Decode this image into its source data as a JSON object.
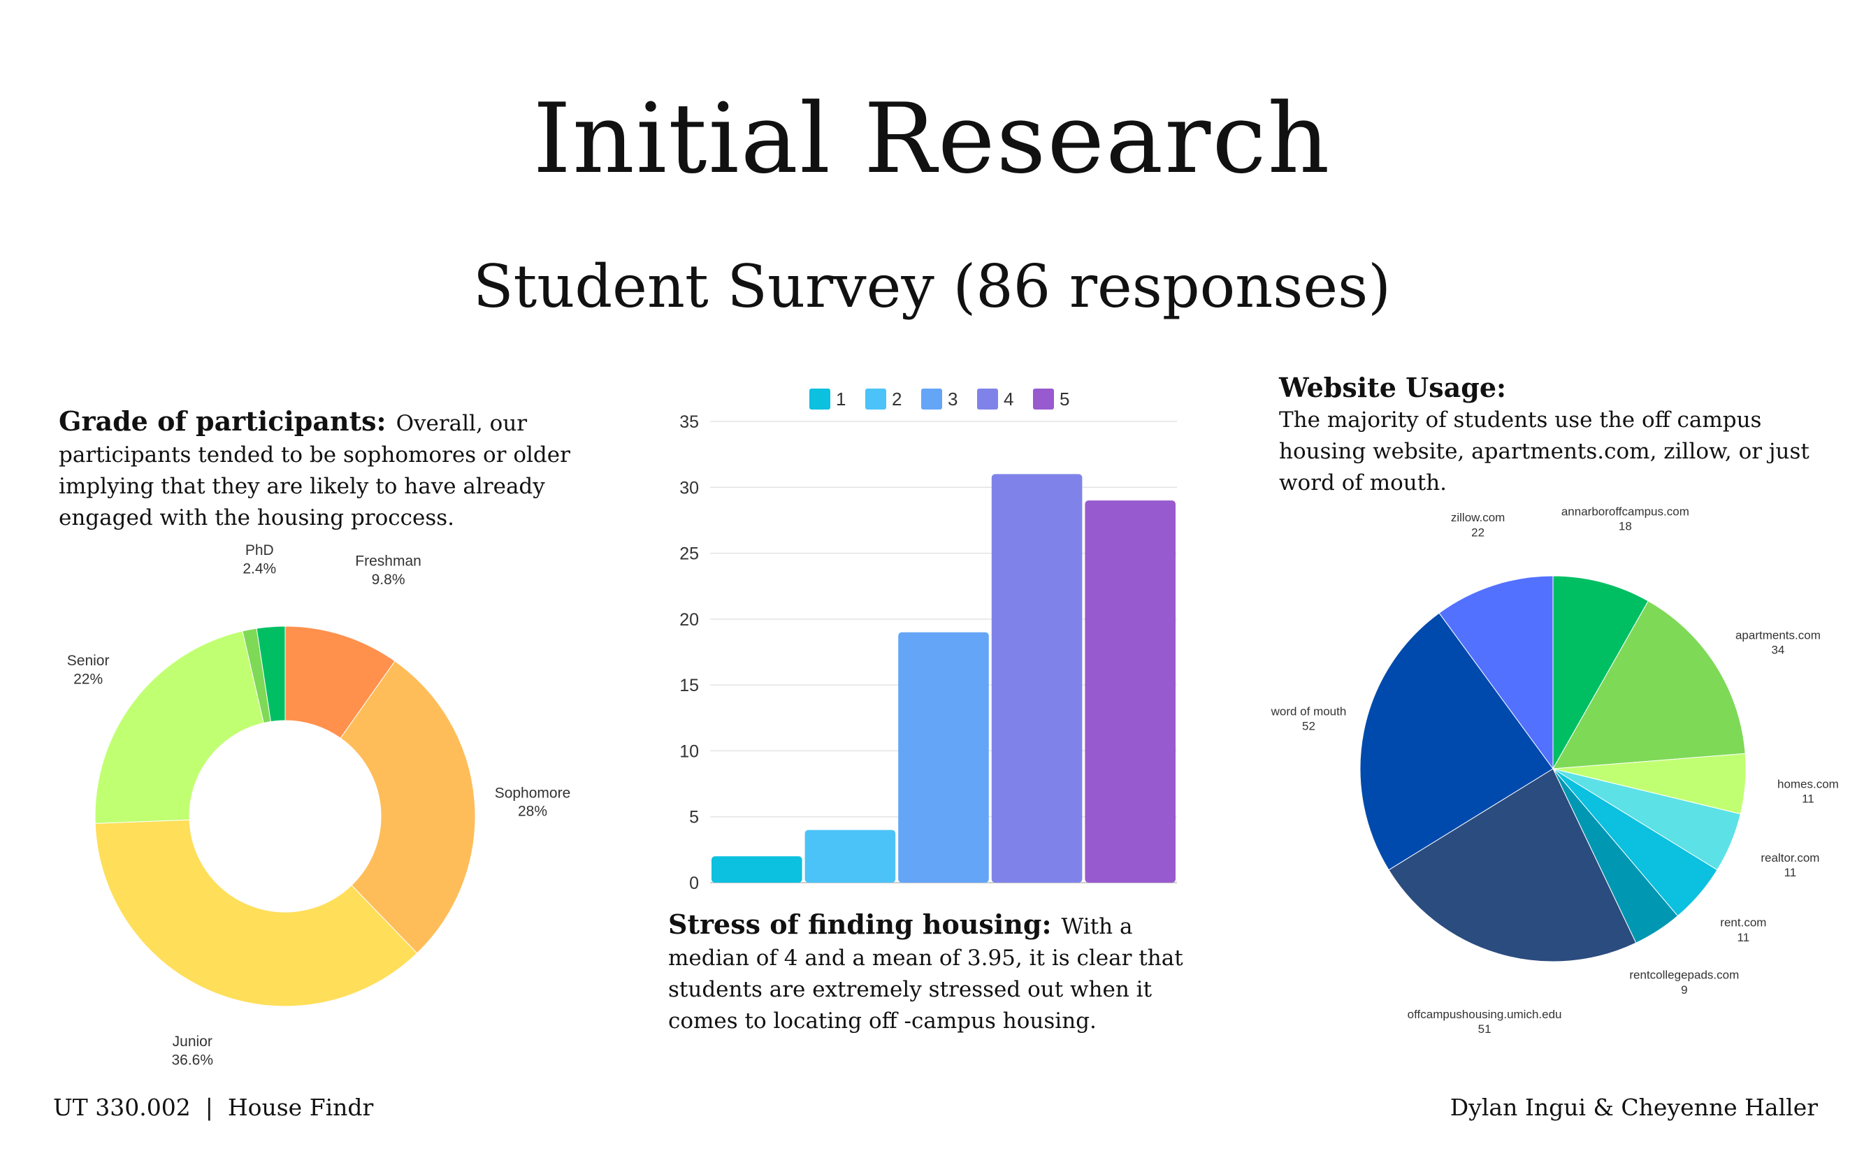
{
  "header": {
    "title": "Initial Research",
    "subtitle": "Student Survey (86 responses)"
  },
  "grade_section": {
    "heading": "Grade of participants:",
    "body": "Overall, our participants tended to be sophomores or older implying that they are likely to have already engaged with the housing proccess."
  },
  "stress_section": {
    "heading": "Stress of finding housing:",
    "body": "With a median of 4 and a mean of 3.95, it is clear that students are extremely stressed out when it comes to locating off -campus housing."
  },
  "website_section": {
    "heading": "Website Usage:",
    "body": "The majority of students use the off campus housing website, apartments.com, zillow, or just word of mouth."
  },
  "footer": {
    "left": "UT 330.002  |  House Findr",
    "right": "Dylan Ingui & Cheyenne Haller"
  },
  "chart_data": [
    {
      "type": "pie",
      "variant": "donut",
      "title": "",
      "slices": [
        {
          "label": "Freshman",
          "value": 9.8,
          "display": "9.8%",
          "color": "#FF914D"
        },
        {
          "label": "Sophomore",
          "value": 28,
          "display": "28%",
          "color": "#FFBD59"
        },
        {
          "label": "Junior",
          "value": 36.6,
          "display": "36.6%",
          "color": "#FFDE59"
        },
        {
          "label": "Senior",
          "value": 22,
          "display": "22%",
          "color": "#C1FF72"
        },
        {
          "label": "",
          "value": 1.2,
          "display": "",
          "color": "#7ED957"
        },
        {
          "label": "PhD",
          "value": 2.4,
          "display": "2.4%",
          "color": "#00BF63"
        }
      ]
    },
    {
      "type": "bar",
      "title": "",
      "categories": [
        "1",
        "2",
        "3",
        "4",
        "5"
      ],
      "values": [
        2,
        4,
        19,
        31,
        29
      ],
      "colors": [
        "#0CC0DF",
        "#4CC3F8",
        "#65A5F8",
        "#7F83E9",
        "#985ACF"
      ],
      "ylim": [
        0,
        35
      ],
      "yticks": [
        0,
        5,
        10,
        15,
        20,
        25,
        30,
        35
      ],
      "legend": "top",
      "grid": true
    },
    {
      "type": "pie",
      "title": "",
      "slices": [
        {
          "label": "annarboroffcampus.com",
          "value": 18,
          "color": "#00BF63"
        },
        {
          "label": "apartments.com",
          "value": 34,
          "color": "#7ED957"
        },
        {
          "label": "homes.com",
          "value": 11,
          "color": "#C1FF72"
        },
        {
          "label": "realtor.com",
          "value": 11,
          "color": "#5CE1E6"
        },
        {
          "label": "rent.com",
          "value": 11,
          "color": "#0CC0DF"
        },
        {
          "label": "rentcollegepads.com",
          "value": 9,
          "color": "#0097B2"
        },
        {
          "label": "offcampushousing.umich.edu",
          "value": 51,
          "color": "#2B4C7E"
        },
        {
          "label": "word of mouth",
          "value": 52,
          "color": "#004AAD"
        },
        {
          "label": "zillow.com",
          "value": 22,
          "color": "#5271FF"
        }
      ]
    }
  ]
}
